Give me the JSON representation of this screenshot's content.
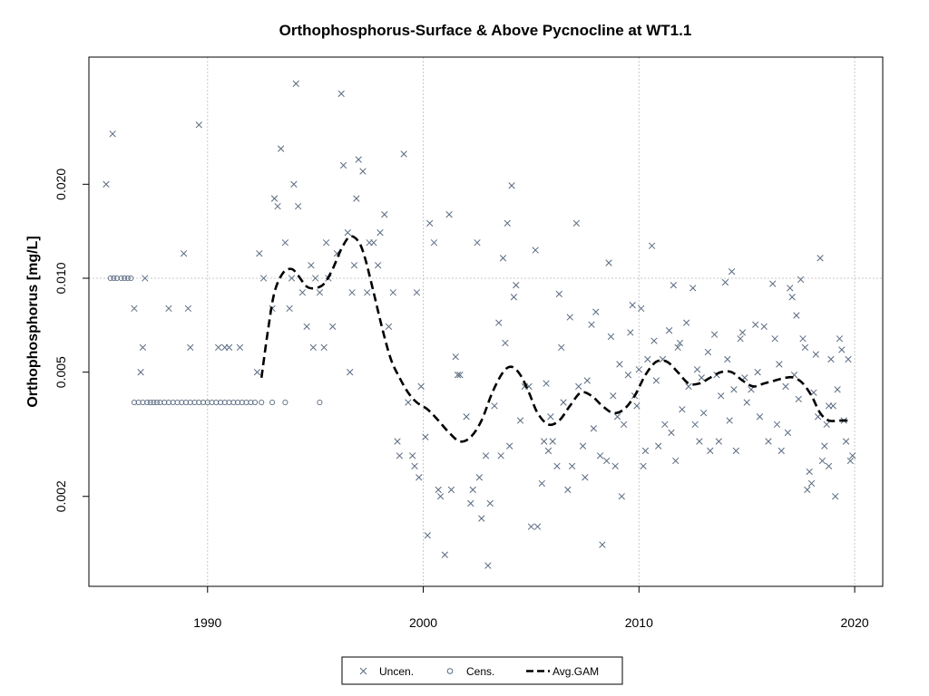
{
  "chart_data": {
    "type": "scatter",
    "title": "Orthophosphorus-Surface & Above Pycnocline at WT1.1",
    "xlabel": "",
    "ylabel": "Orthophosphorus [mg/L]",
    "y_scale": "log",
    "xlim": [
      1984.5,
      2021.3
    ],
    "ylim": [
      0.00103,
      0.0511
    ],
    "x_ticks": [
      1990,
      2000,
      2010,
      2020
    ],
    "x_tick_labels": [
      "1990",
      "2000",
      "2010",
      "2020"
    ],
    "y_ticks": [
      0.002,
      0.005,
      0.01,
      0.02
    ],
    "y_tick_labels": [
      "0.002",
      "0.005",
      "0.010",
      "0.020"
    ],
    "grid": true,
    "legend_position": "bottom",
    "legend": [
      {
        "label": "Uncen.",
        "marker": "x"
      },
      {
        "label": "Cens.",
        "marker": "o"
      },
      {
        "label": "Avg.GAM",
        "marker": "dashed-line"
      }
    ],
    "colors": {
      "points": "#5a6a80",
      "gam": "#000000",
      "grid": "#c8c8c8"
    },
    "uncensored": [
      [
        1985.3,
        0.02
      ],
      [
        1985.6,
        0.029
      ],
      [
        1986.6,
        0.008
      ],
      [
        1986.9,
        0.005
      ],
      [
        1987.0,
        0.006
      ],
      [
        1987.1,
        0.01
      ],
      [
        1988.2,
        0.008
      ],
      [
        1988.9,
        0.012
      ],
      [
        1989.1,
        0.008
      ],
      [
        1989.2,
        0.006
      ],
      [
        1989.6,
        0.031
      ],
      [
        1990.5,
        0.006
      ],
      [
        1990.8,
        0.006
      ],
      [
        1991.0,
        0.006
      ],
      [
        1991.5,
        0.006
      ],
      [
        1992.3,
        0.005
      ],
      [
        1992.4,
        0.012
      ],
      [
        1992.6,
        0.01
      ],
      [
        1993.0,
        0.008
      ],
      [
        1993.1,
        0.018
      ],
      [
        1993.25,
        0.017
      ],
      [
        1993.4,
        0.026
      ],
      [
        1993.6,
        0.013
      ],
      [
        1993.8,
        0.008
      ],
      [
        1993.9,
        0.01
      ],
      [
        1994.0,
        0.02
      ],
      [
        1994.1,
        0.042
      ],
      [
        1994.2,
        0.017
      ],
      [
        1994.4,
        0.009
      ],
      [
        1994.6,
        0.007
      ],
      [
        1994.8,
        0.011
      ],
      [
        1994.9,
        0.006
      ],
      [
        1995.0,
        0.01
      ],
      [
        1995.2,
        0.009
      ],
      [
        1995.4,
        0.006
      ],
      [
        1995.5,
        0.013
      ],
      [
        1995.6,
        0.01
      ],
      [
        1995.8,
        0.007
      ],
      [
        1996.0,
        0.012
      ],
      [
        1996.2,
        0.039
      ],
      [
        1996.3,
        0.023
      ],
      [
        1996.5,
        0.014
      ],
      [
        1996.6,
        0.005
      ],
      [
        1996.7,
        0.009
      ],
      [
        1996.8,
        0.011
      ],
      [
        1996.9,
        0.018
      ],
      [
        1997.0,
        0.024
      ],
      [
        1997.2,
        0.022
      ],
      [
        1997.4,
        0.009
      ],
      [
        1997.5,
        0.013
      ],
      [
        1997.7,
        0.013
      ],
      [
        1997.9,
        0.011
      ],
      [
        1998.0,
        0.014
      ],
      [
        1998.2,
        0.016
      ],
      [
        1998.4,
        0.007
      ],
      [
        1998.6,
        0.009
      ],
      [
        1998.8,
        0.003
      ],
      [
        1998.9,
        0.0027
      ],
      [
        1999.1,
        0.025
      ],
      [
        1999.3,
        0.004
      ],
      [
        1999.5,
        0.0027
      ],
      [
        1999.6,
        0.0025
      ],
      [
        1999.7,
        0.009
      ],
      [
        1999.8,
        0.0023
      ],
      [
        1999.9,
        0.0045
      ],
      [
        2000.1,
        0.0031
      ],
      [
        2000.2,
        0.0015
      ],
      [
        2000.3,
        0.015
      ],
      [
        2000.5,
        0.013
      ],
      [
        2000.7,
        0.0021
      ],
      [
        2000.8,
        0.002
      ],
      [
        2001.0,
        0.0013
      ],
      [
        2001.2,
        0.016
      ],
      [
        2001.3,
        0.0021
      ],
      [
        2001.5,
        0.0056
      ],
      [
        2001.6,
        0.0049
      ],
      [
        2001.7,
        0.0049
      ],
      [
        2002.0,
        0.0036
      ],
      [
        2002.2,
        0.0019
      ],
      [
        2002.3,
        0.0021
      ],
      [
        2002.5,
        0.013
      ],
      [
        2002.6,
        0.0023
      ],
      [
        2002.7,
        0.0017
      ],
      [
        2002.9,
        0.0027
      ],
      [
        2003.0,
        0.0012
      ],
      [
        2003.1,
        0.0019
      ],
      [
        2003.3,
        0.0039
      ],
      [
        2003.5,
        0.0072
      ],
      [
        2003.6,
        0.0027
      ],
      [
        2003.7,
        0.0116
      ],
      [
        2003.8,
        0.0062
      ],
      [
        2003.9,
        0.015
      ],
      [
        2004.0,
        0.0029
      ],
      [
        2004.1,
        0.0198
      ],
      [
        2004.2,
        0.0087
      ],
      [
        2004.3,
        0.0095
      ],
      [
        2004.5,
        0.0035
      ],
      [
        2004.7,
        0.0045
      ],
      [
        2004.9,
        0.0045
      ],
      [
        2005.0,
        0.0016
      ],
      [
        2005.2,
        0.0123
      ],
      [
        2005.3,
        0.0016
      ],
      [
        2005.5,
        0.0022
      ],
      [
        2005.6,
        0.003
      ],
      [
        2005.7,
        0.0046
      ],
      [
        2005.8,
        0.0028
      ],
      [
        2005.9,
        0.0036
      ],
      [
        2006.0,
        0.003
      ],
      [
        2006.2,
        0.0025
      ],
      [
        2006.3,
        0.0089
      ],
      [
        2006.4,
        0.006
      ],
      [
        2006.5,
        0.004
      ],
      [
        2006.7,
        0.0021
      ],
      [
        2006.8,
        0.0075
      ],
      [
        2006.9,
        0.0025
      ],
      [
        2007.1,
        0.015
      ],
      [
        2007.2,
        0.0045
      ],
      [
        2007.4,
        0.0029
      ],
      [
        2007.5,
        0.0023
      ],
      [
        2007.6,
        0.0047
      ],
      [
        2007.8,
        0.0071
      ],
      [
        2007.9,
        0.0033
      ],
      [
        2008.0,
        0.0078
      ],
      [
        2008.2,
        0.0027
      ],
      [
        2008.3,
        0.0014
      ],
      [
        2008.5,
        0.0026
      ],
      [
        2008.6,
        0.0112
      ],
      [
        2008.7,
        0.0065
      ],
      [
        2008.8,
        0.0042
      ],
      [
        2008.9,
        0.0025
      ],
      [
        2009.0,
        0.0036
      ],
      [
        2009.1,
        0.0053
      ],
      [
        2009.2,
        0.002
      ],
      [
        2009.3,
        0.0034
      ],
      [
        2009.5,
        0.0049
      ],
      [
        2009.6,
        0.0067
      ],
      [
        2009.7,
        0.0082
      ],
      [
        2009.8,
        0.0042
      ],
      [
        2009.9,
        0.0039
      ],
      [
        2010.0,
        0.0051
      ],
      [
        2010.1,
        0.008
      ],
      [
        2010.2,
        0.0025
      ],
      [
        2010.3,
        0.0028
      ],
      [
        2010.4,
        0.0055
      ],
      [
        2010.6,
        0.0127
      ],
      [
        2010.7,
        0.0063
      ],
      [
        2010.8,
        0.0047
      ],
      [
        2010.9,
        0.0029
      ],
      [
        2011.1,
        0.0055
      ],
      [
        2011.2,
        0.0034
      ],
      [
        2011.4,
        0.0068
      ],
      [
        2011.5,
        0.0032
      ],
      [
        2011.6,
        0.0095
      ],
      [
        2011.7,
        0.0026
      ],
      [
        2011.8,
        0.006
      ],
      [
        2011.9,
        0.0062
      ],
      [
        2012.0,
        0.0038
      ],
      [
        2012.2,
        0.0072
      ],
      [
        2012.3,
        0.0045
      ],
      [
        2012.5,
        0.0093
      ],
      [
        2012.6,
        0.0034
      ],
      [
        2012.7,
        0.0051
      ],
      [
        2012.8,
        0.003
      ],
      [
        2012.9,
        0.0048
      ],
      [
        2013.0,
        0.0037
      ],
      [
        2013.2,
        0.0058
      ],
      [
        2013.3,
        0.0028
      ],
      [
        2013.5,
        0.0066
      ],
      [
        2013.6,
        0.0049
      ],
      [
        2013.7,
        0.003
      ],
      [
        2013.8,
        0.0042
      ],
      [
        2014.0,
        0.0097
      ],
      [
        2014.1,
        0.0055
      ],
      [
        2014.2,
        0.0035
      ],
      [
        2014.3,
        0.0105
      ],
      [
        2014.4,
        0.0044
      ],
      [
        2014.5,
        0.0028
      ],
      [
        2014.7,
        0.0064
      ],
      [
        2014.8,
        0.0067
      ],
      [
        2014.9,
        0.0048
      ],
      [
        2015.0,
        0.004
      ],
      [
        2015.2,
        0.0044
      ],
      [
        2015.4,
        0.0071
      ],
      [
        2015.5,
        0.005
      ],
      [
        2015.6,
        0.0036
      ],
      [
        2015.8,
        0.007
      ],
      [
        2016.0,
        0.003
      ],
      [
        2016.2,
        0.0096
      ],
      [
        2016.3,
        0.0064
      ],
      [
        2016.4,
        0.0034
      ],
      [
        2016.5,
        0.0053
      ],
      [
        2016.6,
        0.0028
      ],
      [
        2016.8,
        0.0045
      ],
      [
        2016.9,
        0.0032
      ],
      [
        2017.0,
        0.0093
      ],
      [
        2017.1,
        0.0087
      ],
      [
        2017.2,
        0.0049
      ],
      [
        2017.3,
        0.0076
      ],
      [
        2017.4,
        0.0041
      ],
      [
        2017.5,
        0.0099
      ],
      [
        2017.6,
        0.0064
      ],
      [
        2017.7,
        0.006
      ],
      [
        2017.8,
        0.0021
      ],
      [
        2017.9,
        0.0024
      ],
      [
        2018.0,
        0.0022
      ],
      [
        2018.1,
        0.0043
      ],
      [
        2018.2,
        0.0057
      ],
      [
        2018.3,
        0.0036
      ],
      [
        2018.4,
        0.0116
      ],
      [
        2018.5,
        0.0026
      ],
      [
        2018.6,
        0.0029
      ],
      [
        2018.7,
        0.0034
      ],
      [
        2018.8,
        0.0025
      ],
      [
        2018.9,
        0.0055
      ],
      [
        2019.0,
        0.0039
      ],
      [
        2019.1,
        0.002
      ],
      [
        2019.2,
        0.0044
      ],
      [
        2019.3,
        0.0064
      ],
      [
        2019.4,
        0.0059
      ],
      [
        2019.6,
        0.003
      ],
      [
        2019.7,
        0.0055
      ],
      [
        2019.8,
        0.0026
      ],
      [
        2019.9,
        0.0027
      ],
      [
        2019.5,
        0.0035
      ],
      [
        2018.8,
        0.0039
      ]
    ],
    "censored": [
      [
        1985.5,
        0.01
      ],
      [
        1985.65,
        0.01
      ],
      [
        1985.8,
        0.01
      ],
      [
        1986.0,
        0.01
      ],
      [
        1986.15,
        0.01
      ],
      [
        1986.3,
        0.01
      ],
      [
        1986.45,
        0.01
      ],
      [
        1986.6,
        0.004
      ],
      [
        1986.8,
        0.004
      ],
      [
        1987.0,
        0.004
      ],
      [
        1987.2,
        0.004
      ],
      [
        1987.35,
        0.004
      ],
      [
        1987.5,
        0.004
      ],
      [
        1987.65,
        0.004
      ],
      [
        1987.8,
        0.004
      ],
      [
        1988.0,
        0.004
      ],
      [
        1988.2,
        0.004
      ],
      [
        1988.4,
        0.004
      ],
      [
        1988.6,
        0.004
      ],
      [
        1988.8,
        0.004
      ],
      [
        1989.0,
        0.004
      ],
      [
        1989.2,
        0.004
      ],
      [
        1989.4,
        0.004
      ],
      [
        1989.6,
        0.004
      ],
      [
        1989.8,
        0.004
      ],
      [
        1990.0,
        0.004
      ],
      [
        1990.2,
        0.004
      ],
      [
        1990.4,
        0.004
      ],
      [
        1990.6,
        0.004
      ],
      [
        1990.8,
        0.004
      ],
      [
        1991.0,
        0.004
      ],
      [
        1991.2,
        0.004
      ],
      [
        1991.4,
        0.004
      ],
      [
        1991.6,
        0.004
      ],
      [
        1991.8,
        0.004
      ],
      [
        1992.0,
        0.004
      ],
      [
        1992.2,
        0.004
      ],
      [
        1992.5,
        0.004
      ],
      [
        1993.0,
        0.004
      ],
      [
        1993.6,
        0.004
      ],
      [
        1995.2,
        0.004
      ]
    ],
    "gam": [
      [
        1992.5,
        0.0048
      ],
      [
        1992.8,
        0.0068
      ],
      [
        1993.1,
        0.009
      ],
      [
        1993.5,
        0.0104
      ],
      [
        1993.9,
        0.0107
      ],
      [
        1994.2,
        0.0102
      ],
      [
        1994.6,
        0.0094
      ],
      [
        1995.0,
        0.0093
      ],
      [
        1995.4,
        0.0096
      ],
      [
        1995.8,
        0.0107
      ],
      [
        1996.2,
        0.0124
      ],
      [
        1996.6,
        0.0136
      ],
      [
        1997.0,
        0.0131
      ],
      [
        1997.3,
        0.0116
      ],
      [
        1997.7,
        0.009
      ],
      [
        1998.1,
        0.0069
      ],
      [
        1998.5,
        0.0055
      ],
      [
        1998.9,
        0.0048
      ],
      [
        1999.3,
        0.0043
      ],
      [
        1999.7,
        0.004
      ],
      [
        2000.2,
        0.0038
      ],
      [
        2000.7,
        0.0035
      ],
      [
        2001.2,
        0.0032
      ],
      [
        2001.7,
        0.003
      ],
      [
        2002.2,
        0.0031
      ],
      [
        2002.7,
        0.0035
      ],
      [
        2003.2,
        0.0043
      ],
      [
        2003.7,
        0.005
      ],
      [
        2004.1,
        0.0052
      ],
      [
        2004.5,
        0.0049
      ],
      [
        2004.9,
        0.0043
      ],
      [
        2005.3,
        0.0037
      ],
      [
        2005.8,
        0.0034
      ],
      [
        2006.3,
        0.0035
      ],
      [
        2006.8,
        0.0039
      ],
      [
        2007.3,
        0.0043
      ],
      [
        2007.8,
        0.0042
      ],
      [
        2008.3,
        0.0039
      ],
      [
        2008.8,
        0.0037
      ],
      [
        2009.3,
        0.0038
      ],
      [
        2009.8,
        0.0042
      ],
      [
        2010.3,
        0.0049
      ],
      [
        2010.8,
        0.0054
      ],
      [
        2011.3,
        0.0054
      ],
      [
        2011.8,
        0.005
      ],
      [
        2012.3,
        0.0046
      ],
      [
        2012.8,
        0.0046
      ],
      [
        2013.3,
        0.0048
      ],
      [
        2013.8,
        0.005
      ],
      [
        2014.3,
        0.005
      ],
      [
        2014.8,
        0.0047
      ],
      [
        2015.3,
        0.0045
      ],
      [
        2015.8,
        0.0046
      ],
      [
        2016.3,
        0.0047
      ],
      [
        2016.8,
        0.0048
      ],
      [
        2017.2,
        0.0048
      ],
      [
        2017.6,
        0.0046
      ],
      [
        2018.0,
        0.0042
      ],
      [
        2018.4,
        0.0037
      ],
      [
        2018.8,
        0.0035
      ],
      [
        2019.3,
        0.0035
      ],
      [
        2019.8,
        0.0035
      ]
    ]
  }
}
